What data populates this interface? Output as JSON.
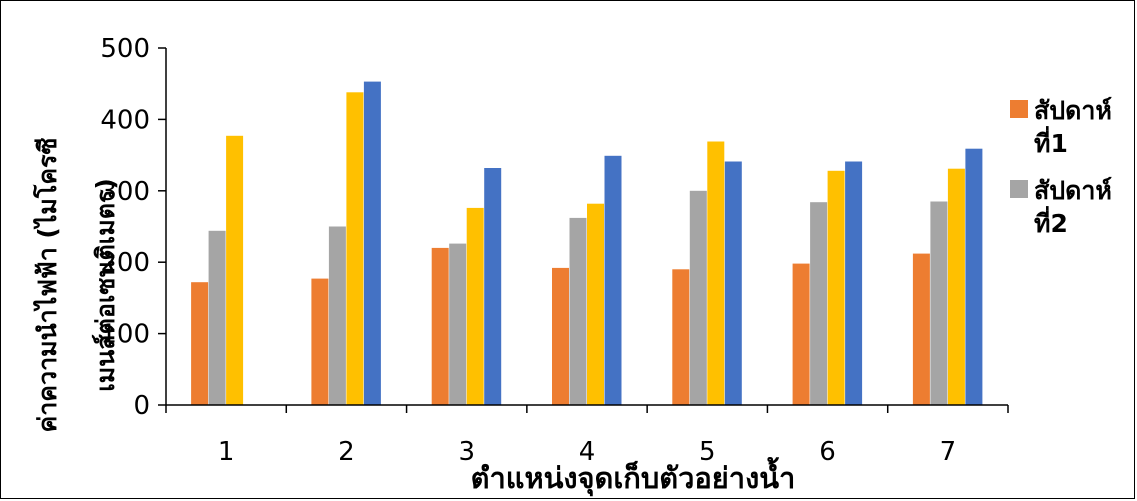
{
  "chart_data": {
    "type": "bar",
    "title": "",
    "categories": [
      "1",
      "2",
      "3",
      "4",
      "5",
      "6",
      "7"
    ],
    "series": [
      {
        "name": "สัปดาห์ที่1",
        "color": "#ED7D31",
        "values": [
          172,
          177,
          220,
          192,
          190,
          198,
          212
        ]
      },
      {
        "name": "สัปดาห์ที่2",
        "color": "#A5A5A5",
        "values": [
          244,
          250,
          226,
          262,
          300,
          284,
          285
        ]
      },
      {
        "color": "#FFC000",
        "values": [
          377,
          438,
          276,
          282,
          369,
          328,
          331
        ]
      },
      {
        "color": "#4472C4",
        "values": [
          null,
          453,
          332,
          349,
          341,
          341,
          359
        ]
      }
    ],
    "xlabel": "ตำแหน่งจุดเก็บตัวอย่างน้ำ",
    "ylabel_line1": "ค่าความนำไฟฟ้า (ไมโครซี",
    "ylabel_line2": "เมนส์ต่อเซนติเมตร)",
    "ylim": [
      0,
      500
    ],
    "yticks": [
      0,
      100,
      200,
      300,
      400,
      500
    ],
    "legend_entries": [
      {
        "line1": "สัปดาห์",
        "line2": "ที่1",
        "color": "#ED7D31"
      },
      {
        "line1": "สัปดาห์",
        "line2": "ที่2",
        "color": "#A5A5A5"
      }
    ],
    "legend_position": "right",
    "grid": false
  }
}
